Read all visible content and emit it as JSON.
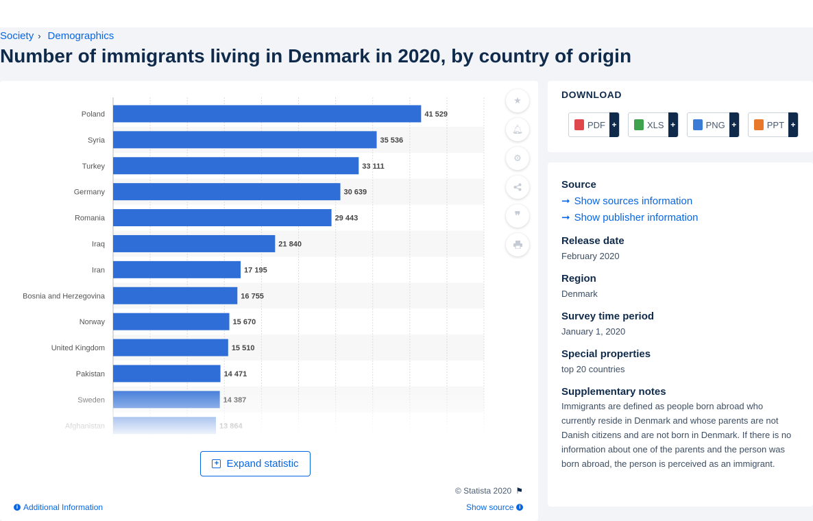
{
  "breadcrumb": {
    "items": [
      "Society",
      "Demographics"
    ],
    "separator": "›"
  },
  "page_title": "Number of immigrants living in Denmark in 2020, by country of origin",
  "chart_data": {
    "type": "bar",
    "orientation": "horizontal",
    "title": "Number of immigrants living in Denmark in 2020, by country of origin",
    "categories": [
      "Poland",
      "Syria",
      "Turkey",
      "Germany",
      "Romania",
      "Iraq",
      "Iran",
      "Bosnia and Herzegovina",
      "Norway",
      "United Kingdom",
      "Pakistan",
      "Sweden",
      "Afghanistan"
    ],
    "values": [
      41529,
      35536,
      33111,
      30639,
      29443,
      21840,
      17195,
      16755,
      15670,
      15510,
      14471,
      14387,
      13864
    ],
    "value_labels": [
      "41 529",
      "35 536",
      "33 111",
      "30 639",
      "29 443",
      "21 840",
      "17 195",
      "16 755",
      "15 670",
      "15 510",
      "14 471",
      "14 387",
      "13 864"
    ],
    "xlim": [
      0,
      50000
    ],
    "gridlines": true,
    "bar_color": "#2f6ed6"
  },
  "chart": {
    "expand_label": "Expand statistic",
    "copyright": "© Statista 2020",
    "additional_info": "Additional Information",
    "show_source": "Show source"
  },
  "tools": [
    "star-icon",
    "bell-icon",
    "gear-icon",
    "share-icon",
    "quote-icon",
    "print-icon"
  ],
  "download": {
    "title": "DOWNLOAD",
    "formats": [
      {
        "label": "PDF",
        "color": "#e0474c"
      },
      {
        "label": "XLS",
        "color": "#3fa34d"
      },
      {
        "label": "PNG",
        "color": "#3a7bd5"
      },
      {
        "label": "PPT",
        "color": "#e8782a"
      }
    ],
    "plus": "+"
  },
  "meta": {
    "source_label": "Source",
    "source_link": "Show sources information",
    "publisher_link": "Show publisher information",
    "release_label": "Release date",
    "release_value": "February 2020",
    "region_label": "Region",
    "region_value": "Denmark",
    "survey_label": "Survey time period",
    "survey_value": "January 1, 2020",
    "special_label": "Special properties",
    "special_value": "top 20 countries",
    "notes_label": "Supplementary notes",
    "notes_value": "Immigrants are defined as people born abroad who currently reside in Denmark and whose parents are not Danish citizens and are not born in Denmark. If there is no information about one of the parents and the person was born abroad, the person is perceived as an immigrant."
  },
  "colors": {
    "accent": "#0666e5",
    "title": "#0f2a4a",
    "bar": "#2f6ed6"
  }
}
